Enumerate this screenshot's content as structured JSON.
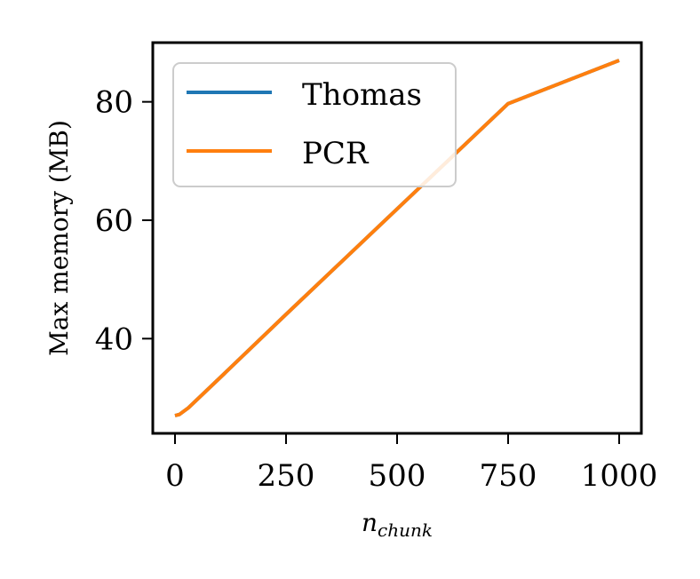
{
  "chart_data": {
    "type": "line",
    "title": "",
    "xlabel": "n",
    "xlabel_sub": "chunk",
    "ylabel": "Max memory (MB)",
    "xlim": [
      -50,
      1050
    ],
    "ylim": [
      24,
      90
    ],
    "xticks": [
      0,
      250,
      500,
      750,
      1000
    ],
    "xtick_labels": [
      "0",
      "250",
      "500",
      "750",
      "1000"
    ],
    "yticks": [
      40,
      60,
      80
    ],
    "ytick_labels": [
      "40",
      "60",
      "80"
    ],
    "grid": false,
    "legend": {
      "position": "top-left"
    },
    "series": [
      {
        "name": "Thomas",
        "color": "#1f77b4",
        "x": [
          0,
          10,
          30,
          100,
          250,
          500,
          750,
          1000
        ],
        "y": [
          27.0,
          27.2,
          28.3,
          33.3,
          44.1,
          61.9,
          79.7,
          87.0
        ]
      },
      {
        "name": "PCR",
        "color": "#ff7f0e",
        "x": [
          0,
          10,
          30,
          100,
          250,
          500,
          750,
          1000
        ],
        "y": [
          27.0,
          27.2,
          28.3,
          33.3,
          44.1,
          61.9,
          79.7,
          87.0
        ]
      }
    ]
  }
}
